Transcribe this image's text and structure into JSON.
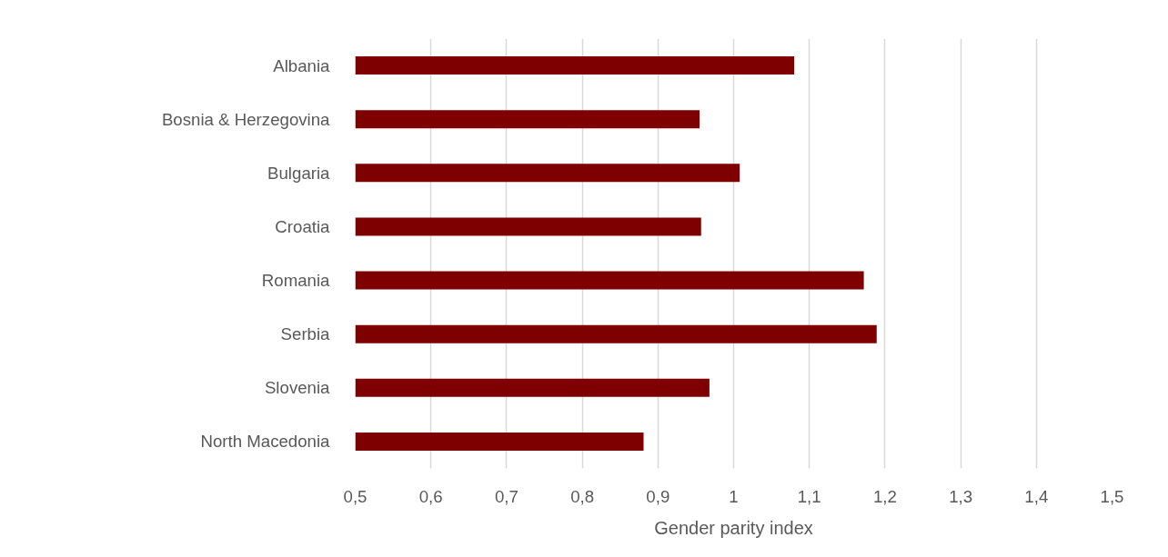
{
  "chart_data": {
    "type": "bar",
    "orientation": "horizontal",
    "xlabel": "Gender parity index",
    "categories": [
      "Albania",
      "Bosnia & Herzegovina",
      "Bulgaria",
      "Croatia",
      "Romania",
      "Serbia",
      "Slovenia",
      "North Macedonia"
    ],
    "values": [
      1.08,
      0.955,
      1.008,
      0.957,
      1.172,
      1.189,
      0.968,
      0.881
    ],
    "color": "#7f0000",
    "xlim": [
      0.5,
      1.5
    ],
    "xticks": [
      {
        "value": 0.5,
        "label": "0,5"
      },
      {
        "value": 0.6,
        "label": "0,6"
      },
      {
        "value": 0.7,
        "label": "0,7"
      },
      {
        "value": 0.8,
        "label": "0,8"
      },
      {
        "value": 0.9,
        "label": "0,9"
      },
      1,
      {
        "value": 1.1,
        "label": "1,1"
      },
      {
        "value": 1.2,
        "label": "1,2"
      },
      {
        "value": 1.3,
        "label": "1,3"
      },
      {
        "value": 1.4,
        "label": "1,4"
      },
      {
        "value": 1.5,
        "label": "1,5"
      }
    ],
    "grid": "x"
  }
}
